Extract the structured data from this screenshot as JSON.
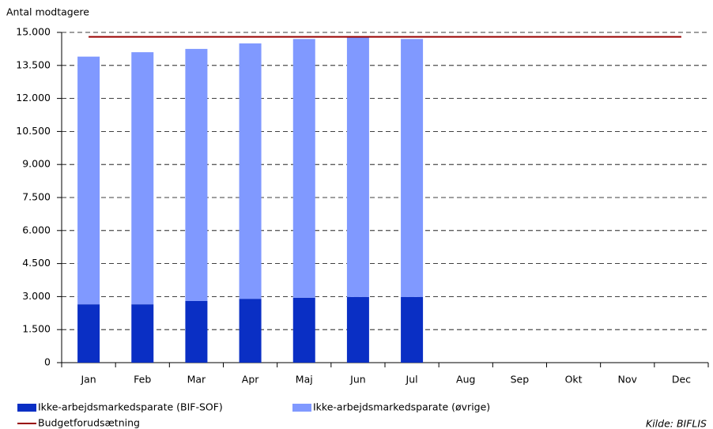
{
  "chart_data": {
    "type": "stacked-bar-line",
    "y_label": "Antal modtagere",
    "source": "Kilde: BIFLIS",
    "categories": [
      "Jan",
      "Feb",
      "Mar",
      "Apr",
      "Maj",
      "Jun",
      "Jul",
      "Aug",
      "Sep",
      "Okt",
      "Nov",
      "Dec"
    ],
    "series": [
      {
        "name": "Ikke-arbejdsmarkedsparate (BIF-SOF)",
        "color": "#0a2fc4",
        "kind": "bar",
        "values": [
          2650,
          2650,
          2800,
          2900,
          2950,
          2980,
          2980,
          null,
          null,
          null,
          null,
          null
        ]
      },
      {
        "name": "Ikke-arbejdsmarkedsparate (øvrige)",
        "color": "#8099ff",
        "kind": "bar",
        "values": [
          11250,
          11450,
          11450,
          11600,
          11750,
          11820,
          11720,
          null,
          null,
          null,
          null,
          null
        ]
      },
      {
        "name": "Budgetforudsætning",
        "color": "#990000",
        "kind": "line",
        "values": [
          14800,
          14800,
          14800,
          14800,
          14800,
          14800,
          14800,
          14800,
          14800,
          14800,
          14800,
          14800
        ]
      }
    ],
    "ylim": [
      0,
      15000
    ],
    "yticks": [
      0,
      {
        "value": 1500,
        "label": "1.500"
      },
      {
        "value": 3000,
        "label": "3.000"
      },
      {
        "value": 4500,
        "label": "4.500"
      },
      {
        "value": 6000,
        "label": "6.000"
      },
      {
        "value": 7500,
        "label": "7.500"
      },
      {
        "value": 9000,
        "label": "9.000"
      },
      {
        "value": 10500,
        "label": "10.500"
      },
      {
        "value": 12000,
        "label": "12.000"
      },
      {
        "value": 13500,
        "label": "13.500"
      },
      {
        "value": 15000,
        "label": "15.000"
      }
    ],
    "grid": true
  }
}
